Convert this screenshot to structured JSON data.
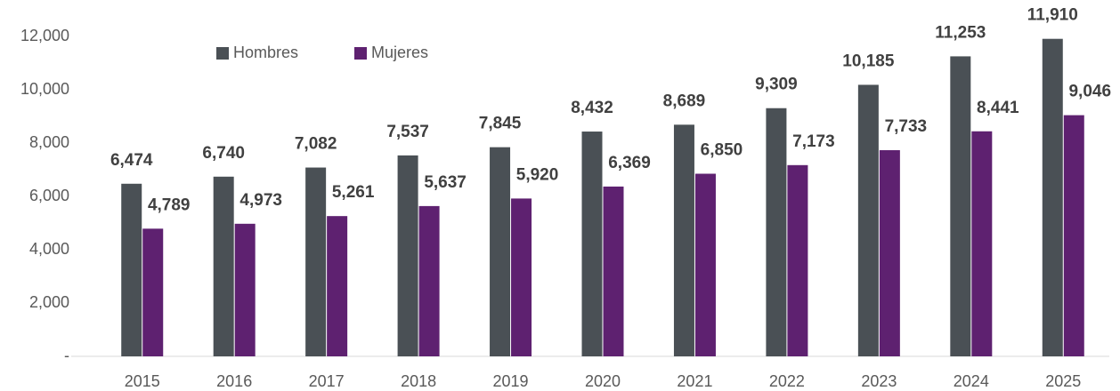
{
  "chart_data": {
    "type": "bar",
    "categories": [
      "2015",
      "2016",
      "2017",
      "2018",
      "2019",
      "2020",
      "2021",
      "2022",
      "2023",
      "2024",
      "2025"
    ],
    "series": [
      {
        "name": "Hombres",
        "color": "#4a5055",
        "values": [
          6474,
          6740,
          7082,
          7537,
          7845,
          8432,
          8689,
          9309,
          10185,
          11253,
          11910
        ],
        "value_labels": [
          "6,474",
          "6,740",
          "7,082",
          "7,537",
          "7,845",
          "8,432",
          "8,689",
          "9,309",
          "10,185",
          "11,253",
          "11,910"
        ]
      },
      {
        "name": "Mujeres",
        "color": "#5e2170",
        "values": [
          4789,
          4973,
          5261,
          5637,
          5920,
          6369,
          6850,
          7173,
          7733,
          8441,
          9046
        ],
        "value_labels": [
          "4,789",
          "4,973",
          "5,261",
          "5,637",
          "5,920",
          "6,369",
          "6,850",
          "7,173",
          "7,733",
          "8,441",
          "9,046"
        ]
      }
    ],
    "ylim": [
      0,
      12000
    ],
    "yticks": [
      {
        "value": 0,
        "label": "-"
      },
      {
        "value": 2000,
        "label": "2,000"
      },
      {
        "value": 4000,
        "label": "4,000"
      },
      {
        "value": 6000,
        "label": "6,000"
      },
      {
        "value": 8000,
        "label": "8,000"
      },
      {
        "value": 10000,
        "label": "10,000"
      },
      {
        "value": 12000,
        "label": "12,000"
      }
    ],
    "grid": false,
    "legend": "top-left"
  }
}
